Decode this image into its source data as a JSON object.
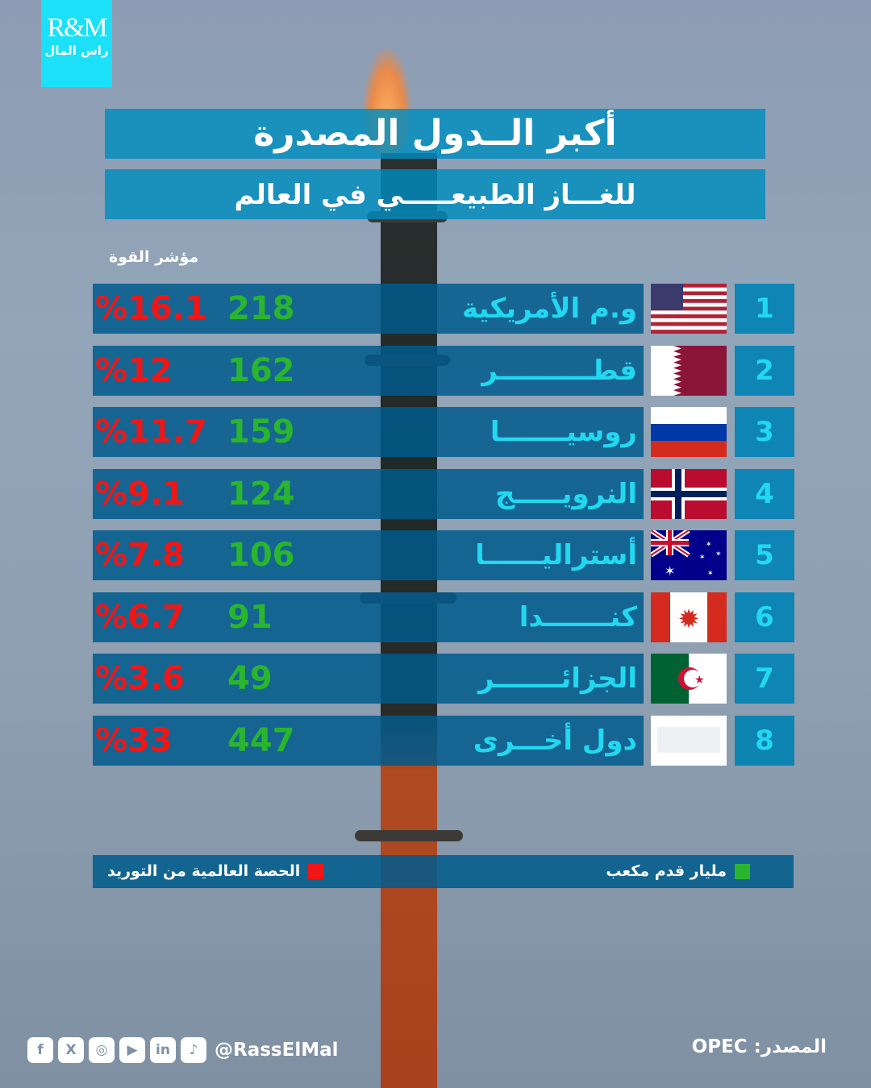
{
  "logo": {
    "latin": "R&M",
    "arabic": "راس المال"
  },
  "title": {
    "line1": "أكبر الــدول المصدرة",
    "line2": "للغـــاز الطبيعـــــي في العالم"
  },
  "power_label": "مؤشر القوة",
  "colors": {
    "bar": "#005a8c",
    "name": "#22d8f0",
    "value": "#2ab52e",
    "percent": "#f01616",
    "logo": "#1be0f7"
  },
  "chart_data": {
    "type": "table",
    "columns": [
      "rank",
      "country",
      "bcm_value",
      "world_share_percent"
    ],
    "rows": [
      {
        "rank": "1",
        "country": "و.م الأمريكية",
        "flag": "usa",
        "value": "218",
        "share": "16.1"
      },
      {
        "rank": "2",
        "country": "قطــــــــــر",
        "flag": "qatar",
        "value": "162",
        "share": "12"
      },
      {
        "rank": "3",
        "country": "روسيـــــــا",
        "flag": "russia",
        "value": "159",
        "share": "11.7"
      },
      {
        "rank": "4",
        "country": "النرويـــــج",
        "flag": "norway",
        "value": "124",
        "share": "9.1"
      },
      {
        "rank": "5",
        "country": "أستراليــــــا",
        "flag": "australia",
        "value": "106",
        "share": "7.8"
      },
      {
        "rank": "6",
        "country": "كنـــــــدا",
        "flag": "canada",
        "value": "91",
        "share": "6.7"
      },
      {
        "rank": "7",
        "country": "الجزائـــــــر",
        "flag": "algeria",
        "value": "49",
        "share": "3.6"
      },
      {
        "rank": "8",
        "country": "دول أخـــرى",
        "flag": "blank",
        "value": "447",
        "share": "33"
      }
    ]
  },
  "legend": {
    "green": "مليار قدم مكعب",
    "red": "الحصة العالمية من التوريد"
  },
  "footer": {
    "source": "المصدر: OPEC",
    "handle": "@RassElMal",
    "social_icons": [
      "facebook",
      "x",
      "instagram",
      "youtube",
      "linkedin",
      "tiktok"
    ]
  }
}
